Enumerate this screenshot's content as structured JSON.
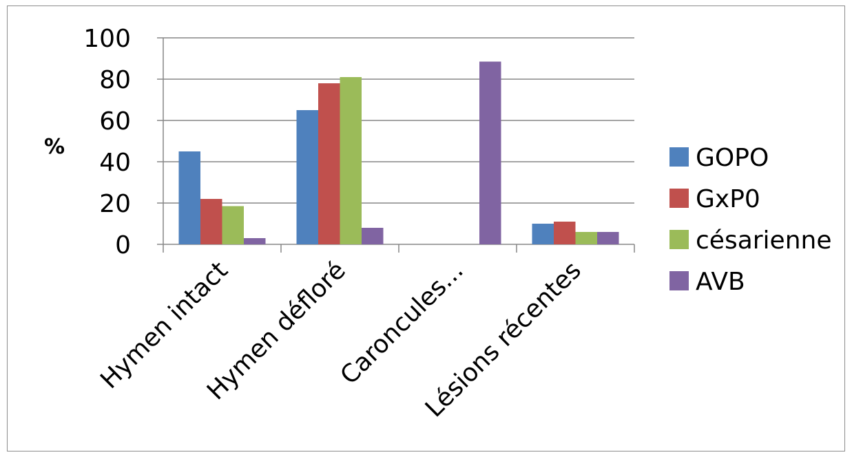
{
  "chart_data": {
    "type": "bar",
    "title": "",
    "xlabel": "",
    "ylabel": "%",
    "ylim": [
      0,
      100
    ],
    "yticks": [
      0,
      20,
      40,
      60,
      80,
      100
    ],
    "grid": true,
    "legend_position": "right",
    "categories": [
      "Hymen intact",
      "Hymen défloré",
      "Caroncules...",
      "Lésions récentes"
    ],
    "series": [
      {
        "name": "GOPO",
        "color": "#4f81bd",
        "values": [
          45,
          65,
          0,
          10
        ]
      },
      {
        "name": "GxP0",
        "color": "#c0504d",
        "values": [
          22,
          78,
          0,
          11
        ]
      },
      {
        "name": "césarienne",
        "color": "#9bbb59",
        "values": [
          18.5,
          81,
          0,
          6
        ]
      },
      {
        "name": "AVB",
        "color": "#8064a2",
        "values": [
          3,
          8,
          88.5,
          6
        ]
      }
    ]
  }
}
